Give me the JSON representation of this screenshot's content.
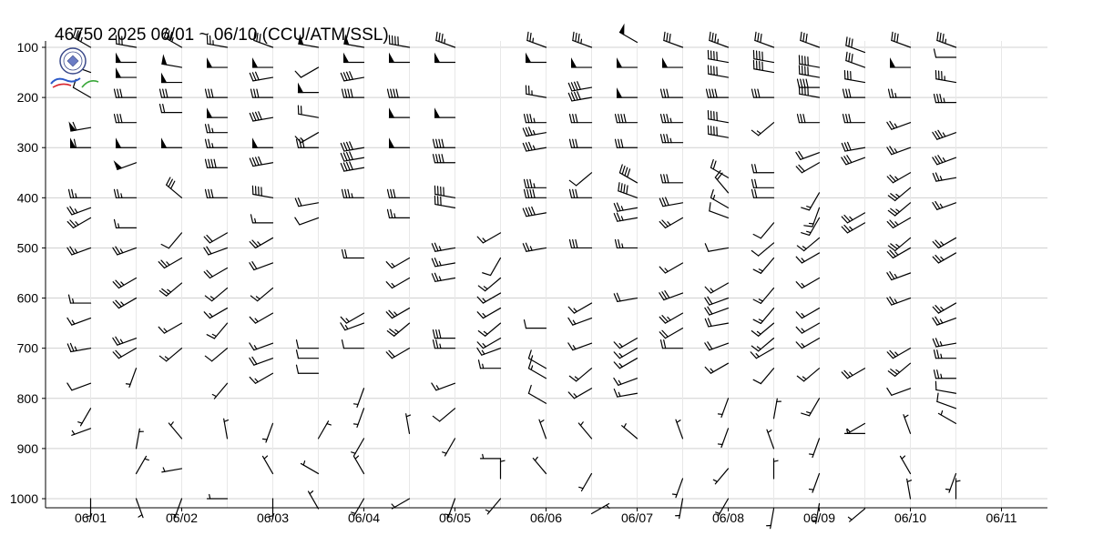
{
  "chart_data": {
    "type": "wind-barb",
    "title": "46750  2025  06/01 ~ 06/10 (CCU/ATM/SSL)",
    "ylabel": "",
    "xlabel": "",
    "y_axis": {
      "ticks": [
        100,
        200,
        300,
        400,
        500,
        600,
        700,
        800,
        900,
        1000
      ],
      "range": [
        1020,
        90
      ]
    },
    "x_axis": {
      "ticks": [
        "06/01",
        "06/02",
        "06/03",
        "06/04",
        "06/05",
        "06/06",
        "06/07",
        "06/08",
        "06/09",
        "06/10",
        "06/11"
      ],
      "range_days": [
        0.5,
        11.5
      ]
    },
    "grid": true,
    "legend": "none",
    "colors": {
      "barb": "#000000",
      "grid": "#d0d0d0"
    },
    "soundings_per_day": 2,
    "profiles": [
      {
        "time": "06/01 00Z",
        "pressures": [
          100,
          150,
          200,
          260,
          300,
          400,
          420,
          440,
          500,
          610,
          640,
          700,
          770,
          820,
          860,
          1000
        ],
        "speeds_kt": [
          35,
          25,
          10,
          60,
          60,
          25,
          25,
          25,
          25,
          15,
          15,
          25,
          10,
          5,
          5,
          5
        ],
        "dirs_deg": [
          300,
          290,
          300,
          260,
          270,
          270,
          250,
          240,
          250,
          270,
          250,
          260,
          250,
          210,
          250,
          180
        ]
      },
      {
        "time": "06/01 12Z",
        "pressures": [
          100,
          130,
          160,
          200,
          250,
          300,
          330,
          400,
          460,
          500,
          560,
          600,
          680,
          700,
          740,
          900,
          950,
          1000
        ],
        "speeds_kt": [
          30,
          50,
          50,
          30,
          30,
          50,
          50,
          25,
          15,
          25,
          25,
          25,
          25,
          20,
          5,
          5,
          5,
          5
        ],
        "dirs_deg": [
          280,
          270,
          270,
          270,
          270,
          270,
          250,
          270,
          270,
          250,
          240,
          240,
          250,
          240,
          200,
          10,
          30,
          160
        ]
      },
      {
        "time": "06/02 00Z",
        "pressures": [
          100,
          140,
          170,
          200,
          230,
          300,
          400,
          470,
          520,
          570,
          650,
          700,
          880,
          940,
          1000
        ],
        "speeds_kt": [
          35,
          50,
          50,
          30,
          20,
          50,
          30,
          10,
          25,
          25,
          15,
          15,
          5,
          5,
          5
        ],
        "dirs_deg": [
          300,
          280,
          270,
          270,
          270,
          270,
          310,
          220,
          240,
          230,
          240,
          230,
          320,
          260,
          200
        ]
      },
      {
        "time": "06/02 12Z",
        "pressures": [
          100,
          140,
          200,
          240,
          270,
          300,
          340,
          400,
          470,
          500,
          540,
          580,
          620,
          650,
          700,
          770,
          880,
          1000
        ],
        "speeds_kt": [
          25,
          50,
          30,
          50,
          25,
          25,
          40,
          30,
          20,
          20,
          20,
          15,
          15,
          15,
          10,
          5,
          5,
          5
        ],
        "dirs_deg": [
          280,
          270,
          270,
          270,
          270,
          270,
          270,
          270,
          240,
          250,
          240,
          230,
          240,
          220,
          230,
          220,
          350,
          270
        ]
      },
      {
        "time": "06/03 00Z",
        "pressures": [
          100,
          140,
          160,
          200,
          240,
          300,
          330,
          400,
          450,
          480,
          530,
          580,
          630,
          690,
          720,
          750,
          850,
          950,
          1000
        ],
        "speeds_kt": [
          30,
          50,
          30,
          30,
          40,
          50,
          40,
          40,
          15,
          25,
          20,
          15,
          15,
          15,
          20,
          15,
          5,
          5,
          5
        ],
        "dirs_deg": [
          290,
          270,
          260,
          270,
          260,
          270,
          260,
          280,
          270,
          240,
          250,
          230,
          240,
          250,
          250,
          240,
          200,
          330,
          180
        ]
      },
      {
        "time": "06/03 12Z",
        "pressures": [
          100,
          140,
          190,
          240,
          270,
          300,
          410,
          440,
          700,
          720,
          750,
          880,
          950,
          1020
        ],
        "speeds_kt": [
          50,
          10,
          50,
          20,
          15,
          30,
          20,
          10,
          10,
          10,
          10,
          5,
          5,
          5
        ],
        "dirs_deg": [
          280,
          240,
          270,
          280,
          240,
          270,
          260,
          250,
          270,
          270,
          270,
          30,
          300,
          330
        ]
      },
      {
        "time": "06/04 00Z",
        "pressures": [
          100,
          130,
          160,
          200,
          300,
          320,
          340,
          400,
          520,
          630,
          650,
          700,
          780,
          820,
          880,
          950,
          1000
        ],
        "speeds_kt": [
          50,
          50,
          40,
          40,
          40,
          40,
          40,
          35,
          20,
          15,
          15,
          10,
          5,
          5,
          5,
          5,
          5
        ],
        "dirs_deg": [
          280,
          270,
          260,
          270,
          260,
          260,
          260,
          270,
          270,
          240,
          250,
          270,
          200,
          200,
          210,
          330,
          210
        ]
      },
      {
        "time": "06/04 12Z",
        "pressures": [
          100,
          130,
          200,
          240,
          300,
          400,
          440,
          520,
          560,
          620,
          650,
          700,
          870,
          1000
        ],
        "speeds_kt": [
          40,
          50,
          40,
          50,
          50,
          30,
          25,
          15,
          15,
          25,
          25,
          20,
          5,
          5
        ],
        "dirs_deg": [
          280,
          270,
          270,
          270,
          270,
          270,
          270,
          240,
          240,
          240,
          230,
          240,
          350,
          240
        ]
      },
      {
        "time": "06/05 00Z",
        "pressures": [
          100,
          130,
          240,
          300,
          330,
          400,
          420,
          500,
          530,
          560,
          680,
          700,
          770,
          820,
          880,
          1000
        ],
        "speeds_kt": [
          35,
          50,
          50,
          40,
          40,
          40,
          30,
          25,
          25,
          25,
          30,
          25,
          15,
          10,
          5,
          5
        ],
        "dirs_deg": [
          290,
          270,
          270,
          270,
          270,
          280,
          280,
          260,
          260,
          260,
          270,
          270,
          250,
          230,
          210,
          200
        ]
      },
      {
        "time": "06/05 12Z",
        "pressures": [
          470,
          520,
          560,
          590,
          620,
          650,
          680,
          700,
          740,
          920,
          960,
          1000
        ],
        "speeds_kt": [
          15,
          10,
          15,
          15,
          15,
          15,
          15,
          15,
          15,
          5,
          5,
          5
        ],
        "dirs_deg": [
          240,
          210,
          230,
          240,
          240,
          230,
          240,
          250,
          270,
          270,
          360,
          220
        ]
      },
      {
        "time": "06/06 00Z",
        "pressures": [
          100,
          130,
          200,
          250,
          270,
          300,
          380,
          400,
          430,
          500,
          660,
          740,
          760,
          810,
          880,
          950
        ],
        "speeds_kt": [
          25,
          50,
          25,
          35,
          35,
          35,
          35,
          40,
          40,
          25,
          10,
          15,
          15,
          10,
          5,
          5
        ],
        "dirs_deg": [
          290,
          270,
          280,
          270,
          260,
          260,
          270,
          270,
          260,
          260,
          270,
          300,
          300,
          300,
          340,
          320
        ]
      },
      {
        "time": "06/06 12Z",
        "pressures": [
          100,
          140,
          180,
          200,
          250,
          300,
          350,
          400,
          500,
          610,
          640,
          690,
          740,
          780,
          880,
          950,
          1030
        ],
        "speeds_kt": [
          35,
          50,
          40,
          40,
          30,
          30,
          10,
          30,
          30,
          15,
          15,
          15,
          15,
          15,
          5,
          5,
          5
        ],
        "dirs_deg": [
          290,
          270,
          260,
          260,
          270,
          270,
          230,
          270,
          270,
          240,
          250,
          250,
          230,
          240,
          320,
          210,
          60
        ]
      },
      {
        "time": "06/07 00Z",
        "pressures": [
          90,
          140,
          200,
          250,
          300,
          370,
          400,
          420,
          440,
          500,
          600,
          680,
          700,
          720,
          760,
          790,
          880
        ],
        "speeds_kt": [
          50,
          50,
          50,
          40,
          30,
          40,
          40,
          25,
          25,
          25,
          20,
          15,
          15,
          15,
          15,
          15,
          5
        ],
        "dirs_deg": [
          300,
          270,
          270,
          270,
          270,
          300,
          290,
          260,
          260,
          270,
          260,
          240,
          240,
          240,
          250,
          260,
          310
        ]
      },
      {
        "time": "06/07 12Z",
        "pressures": [
          100,
          140,
          200,
          250,
          290,
          370,
          410,
          440,
          530,
          590,
          630,
          660,
          700,
          880,
          960,
          1000
        ],
        "speeds_kt": [
          30,
          50,
          30,
          35,
          35,
          30,
          30,
          25,
          15,
          30,
          25,
          20,
          20,
          5,
          5,
          5
        ],
        "dirs_deg": [
          290,
          270,
          270,
          270,
          270,
          270,
          260,
          240,
          240,
          250,
          240,
          240,
          270,
          340,
          200,
          190
        ]
      },
      {
        "time": "06/08 00Z",
        "pressures": [
          100,
          130,
          160,
          200,
          250,
          280,
          360,
          390,
          420,
          440,
          500,
          570,
          600,
          620,
          650,
          690,
          730,
          800,
          860,
          940,
          1000
        ],
        "speeds_kt": [
          35,
          40,
          40,
          40,
          40,
          40,
          20,
          20,
          15,
          10,
          10,
          15,
          20,
          20,
          20,
          20,
          15,
          5,
          5,
          5,
          5
        ],
        "dirs_deg": [
          290,
          280,
          280,
          270,
          280,
          280,
          300,
          320,
          300,
          290,
          260,
          240,
          250,
          250,
          260,
          250,
          240,
          200,
          200,
          220,
          210
        ]
      },
      {
        "time": "06/08 12Z",
        "pressures": [
          100,
          130,
          150,
          200,
          250,
          350,
          380,
          400,
          450,
          490,
          520,
          580,
          620,
          650,
          680,
          700,
          740,
          840,
          900,
          960,
          1020
        ],
        "speeds_kt": [
          30,
          40,
          40,
          30,
          15,
          20,
          20,
          20,
          10,
          10,
          15,
          15,
          15,
          15,
          15,
          15,
          10,
          5,
          5,
          5,
          5
        ],
        "dirs_deg": [
          290,
          280,
          280,
          270,
          230,
          270,
          270,
          270,
          220,
          230,
          220,
          220,
          220,
          230,
          230,
          240,
          220,
          10,
          340,
          360,
          190
        ]
      },
      {
        "time": "06/09 00Z",
        "pressures": [
          100,
          140,
          160,
          180,
          200,
          250,
          310,
          330,
          390,
          420,
          440,
          480,
          510,
          560,
          620,
          650,
          680,
          740,
          800,
          880,
          950,
          1010
        ],
        "speeds_kt": [
          30,
          40,
          40,
          40,
          40,
          30,
          20,
          20,
          15,
          15,
          15,
          15,
          15,
          15,
          15,
          15,
          15,
          15,
          15,
          5,
          5,
          5
        ],
        "dirs_deg": [
          290,
          280,
          280,
          270,
          280,
          270,
          250,
          240,
          210,
          200,
          210,
          230,
          240,
          240,
          240,
          240,
          240,
          230,
          210,
          200,
          200,
          190
        ]
      },
      {
        "time": "06/09 12Z",
        "pressures": [
          110,
          140,
          170,
          200,
          250,
          300,
          320,
          430,
          450,
          740,
          850,
          870,
          1020
        ],
        "speeds_kt": [
          30,
          30,
          30,
          30,
          30,
          30,
          30,
          25,
          25,
          25,
          5,
          5,
          5
        ],
        "dirs_deg": [
          290,
          290,
          280,
          270,
          270,
          260,
          250,
          240,
          240,
          240,
          240,
          270,
          230
        ]
      },
      {
        "time": "06/10 00Z",
        "pressures": [
          100,
          140,
          200,
          250,
          300,
          350,
          380,
          410,
          440,
          480,
          500,
          550,
          600,
          700,
          730,
          780,
          870,
          950,
          1000
        ],
        "speeds_kt": [
          30,
          50,
          25,
          25,
          25,
          25,
          25,
          25,
          25,
          25,
          25,
          25,
          25,
          25,
          25,
          10,
          5,
          5,
          5
        ],
        "dirs_deg": [
          290,
          270,
          270,
          250,
          250,
          240,
          230,
          230,
          240,
          230,
          240,
          250,
          250,
          240,
          230,
          250,
          340,
          330,
          350
        ]
      },
      {
        "time": "06/10 12Z",
        "pressures": [
          100,
          120,
          170,
          210,
          270,
          320,
          360,
          410,
          480,
          510,
          610,
          640,
          690,
          720,
          760,
          790,
          820,
          850,
          950,
          1000
        ],
        "speeds_kt": [
          35,
          10,
          35,
          35,
          35,
          35,
          25,
          25,
          25,
          25,
          25,
          25,
          25,
          25,
          25,
          10,
          10,
          5,
          5,
          5
        ],
        "dirs_deg": [
          290,
          270,
          280,
          270,
          250,
          250,
          260,
          250,
          240,
          240,
          240,
          250,
          260,
          270,
          270,
          280,
          290,
          300,
          200,
          0
        ]
      }
    ]
  }
}
